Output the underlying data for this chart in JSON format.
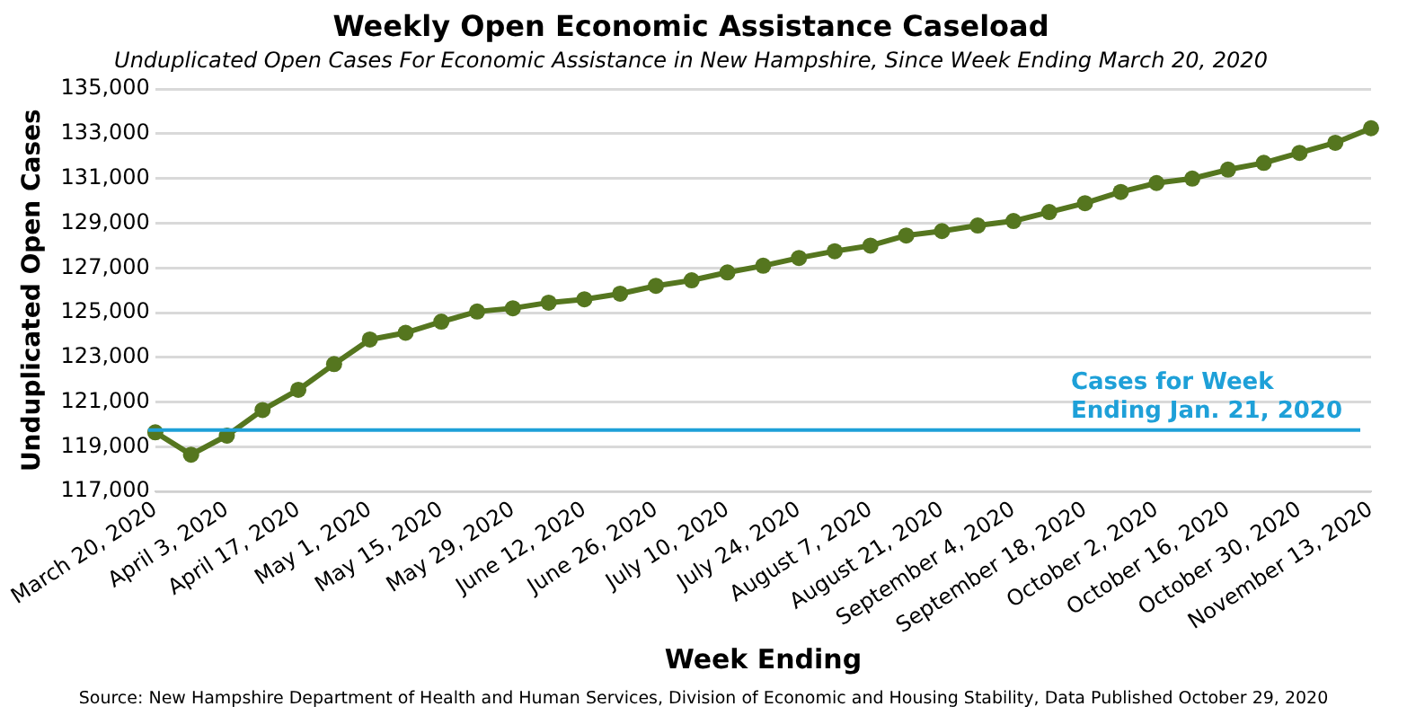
{
  "chart_data": {
    "type": "line",
    "title": "Weekly Open Economic Assistance Caseload",
    "subtitle": "Unduplicated Open Cases For Economic Assistance in New Hampshire, Since Week Ending March 20, 2020",
    "xlabel": "Week Ending",
    "ylabel": "Unduplicated Open Cases",
    "categories": [
      "March 20, 2020",
      null,
      "April 3, 2020",
      null,
      "April 17, 2020",
      null,
      "May 1, 2020",
      null,
      "May 15, 2020",
      null,
      "May 29, 2020",
      null,
      "June 12, 2020",
      null,
      "June 26, 2020",
      null,
      "July 10, 2020",
      null,
      "July 24, 2020",
      null,
      "August 7, 2020",
      null,
      "August 21, 2020",
      null,
      "September 4, 2020",
      null,
      "September 18, 2020",
      null,
      "October 2, 2020",
      null,
      "October 16, 2020",
      null,
      "October 30, 2020",
      null,
      "November 13, 2020"
    ],
    "series": [
      {
        "color": "#55761f",
        "values": [
          119650,
          118650,
          119500,
          120650,
          121550,
          122700,
          123800,
          124100,
          124600,
          125050,
          125200,
          125450,
          125600,
          125850,
          126200,
          126450,
          126800,
          127100,
          127450,
          127750,
          128000,
          128450,
          128650,
          128900,
          129100,
          129500,
          129900,
          130400,
          130800,
          131000,
          131400,
          131700,
          132150,
          132600,
          133250
        ]
      }
    ],
    "ylim": [
      117000,
      135000
    ],
    "yticks": [
      {
        "value": 117000,
        "label": "117,000"
      },
      {
        "value": 119000,
        "label": "119,000"
      },
      {
        "value": 121000,
        "label": "121,000"
      },
      {
        "value": 123000,
        "label": "123,000"
      },
      {
        "value": 125000,
        "label": "125,000"
      },
      {
        "value": 127000,
        "label": "127,000"
      },
      {
        "value": 129000,
        "label": "129,000"
      },
      {
        "value": 131000,
        "label": "131,000"
      },
      {
        "value": 133000,
        "label": "133,000"
      },
      {
        "value": 135000,
        "label": "135,000"
      }
    ],
    "ref_lines": [
      {
        "axis": "y",
        "value": 119750,
        "label": "Cases for Week\nEnding Jan. 21, 2020",
        "color": "#1ea0d8"
      }
    ],
    "annotations": [
      "Source: New Hampshire Department of Health and Human Services, Division of Economic and Housing Stability, Data Published October 29, 2020"
    ],
    "grid": "y",
    "legend": false,
    "marker": "circle",
    "line_style": "solid"
  }
}
